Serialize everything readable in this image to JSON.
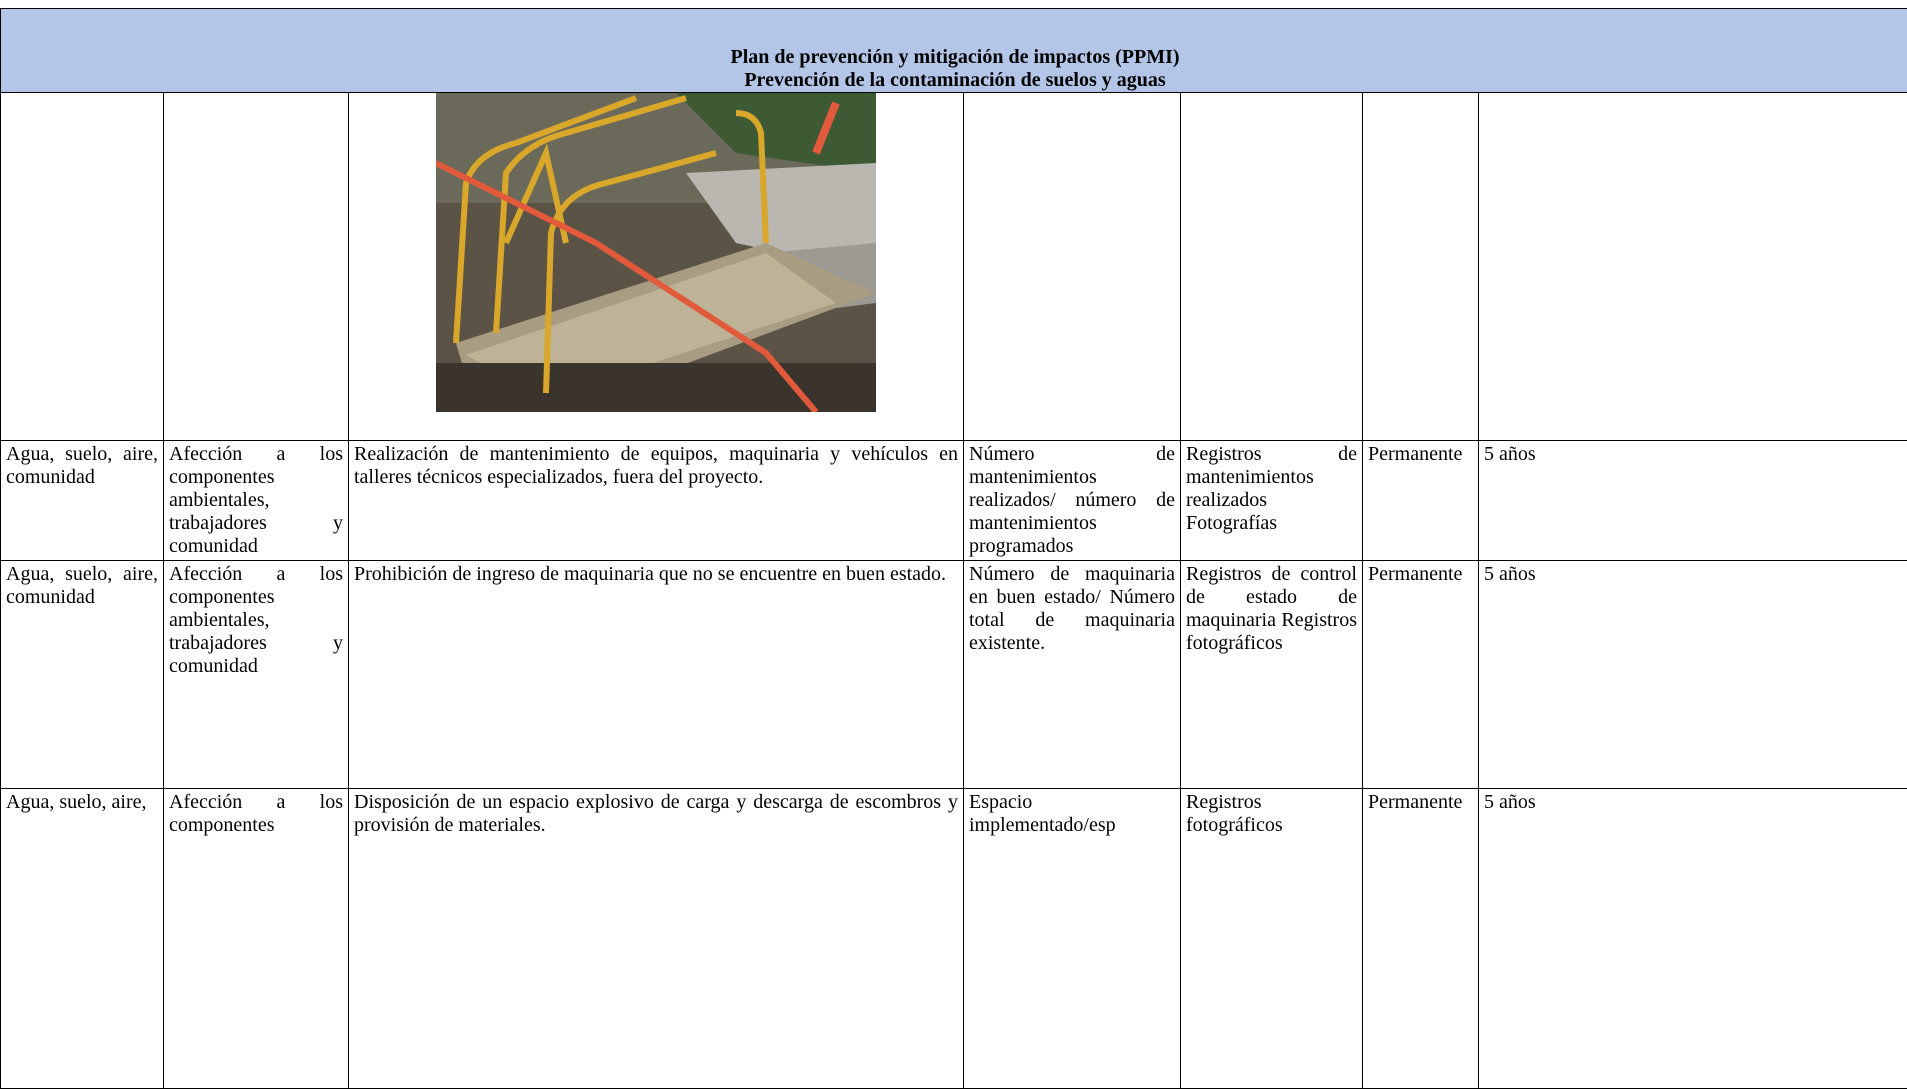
{
  "header": {
    "title": "Plan de prevención y mitigación de impactos (PPMI)",
    "subtitle": "Prevención de la contaminación de suelos y aguas"
  },
  "table": {
    "rows": [
      [
        "Agua, suelo, aire, comunidad",
        "Afección a los componentes ambientales, trabajadores y comunidad",
        "Realización de mantenimiento de equipos, maquinaria y vehículos en talleres técnicos especializados, fuera del proyecto.",
        "Número de mantenimientos realizados/ número de mantenimientos programados",
        "Registros de mantenimientos realizados Fotografías",
        "Permanente",
        "5 años"
      ],
      [
        "Agua, suelo, aire, comunidad",
        "Afección a los componentes ambientales, trabajadores y comunidad",
        "Prohibición de ingreso de maquinaria que no se encuentre en buen estado.",
        "Número de maquinaria en buen estado/ Número total de maquinaria existente.",
        "Registros de control de estado de maquinaria Registros fotográficos",
        "Permanente",
        "5 años"
      ],
      [
        "Agua, suelo, aire,",
        "Afección a los componentes",
        "Disposición de un espacio explosivo de carga y descarga de escombros y provisión de materiales.",
        "Espacio implementado/esp",
        "Registros fotográficos",
        "Permanente",
        "5 años"
      ]
    ]
  }
}
